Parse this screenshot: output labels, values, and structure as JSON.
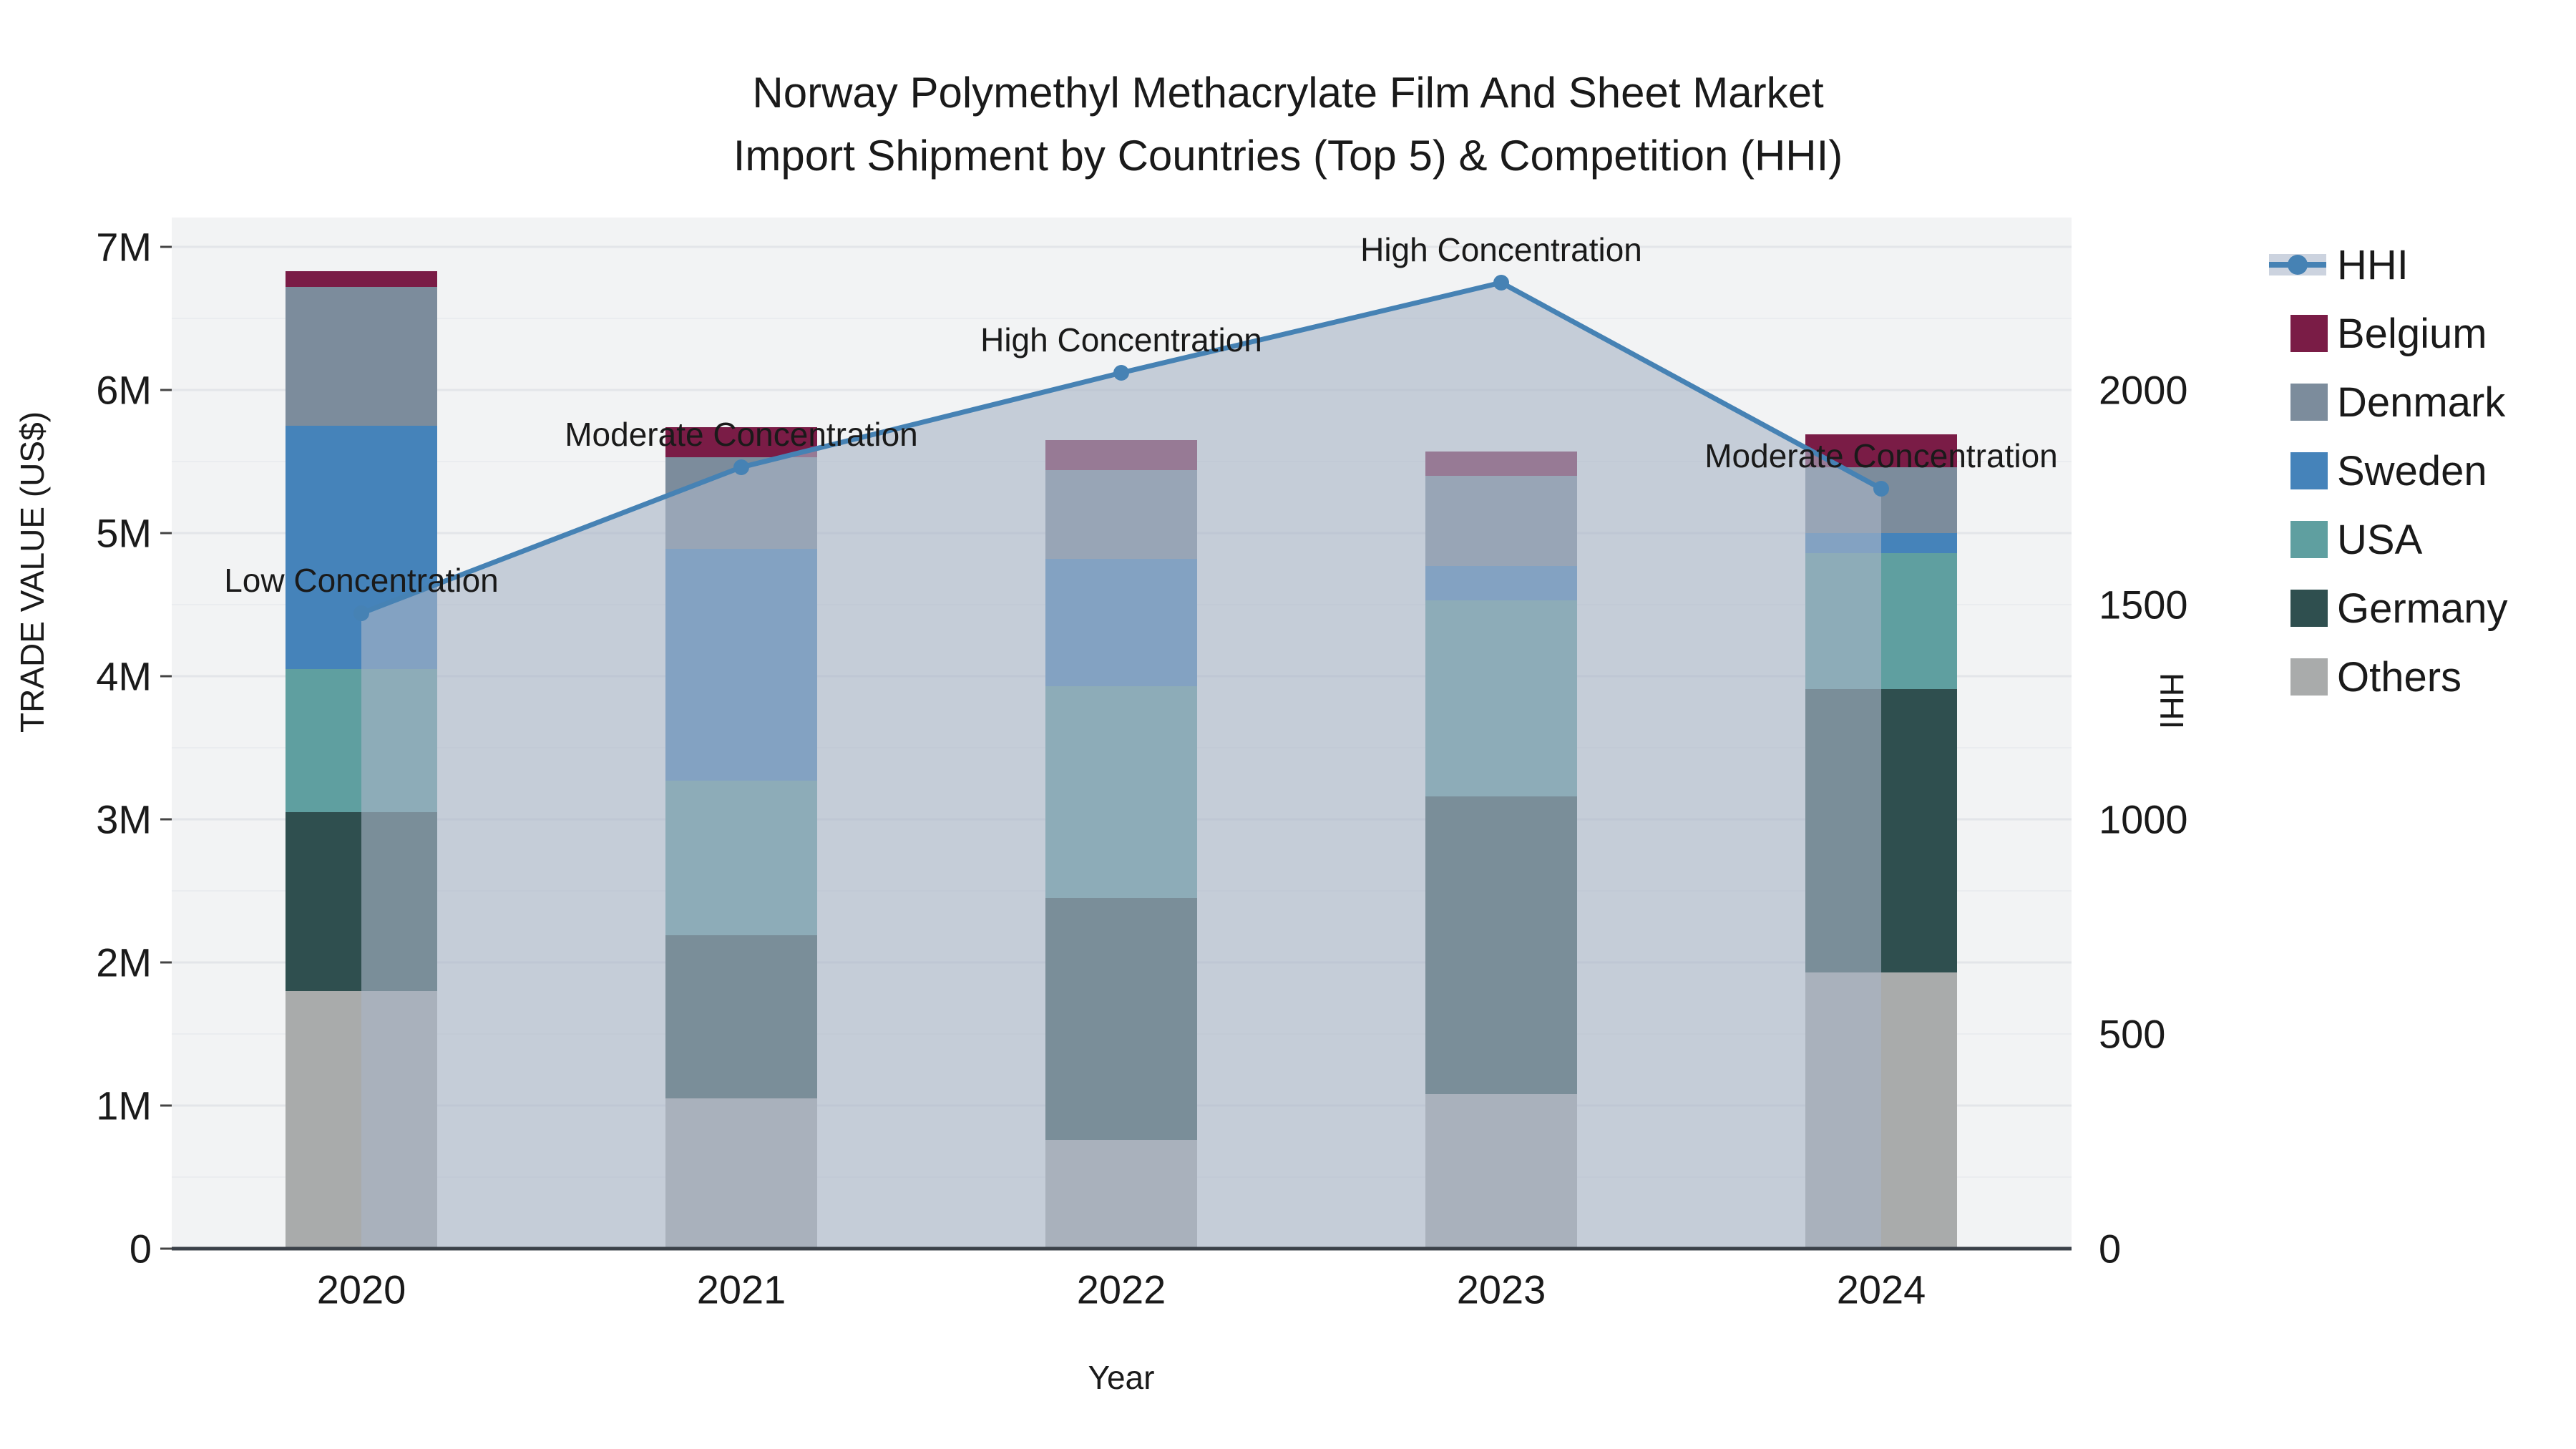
{
  "title": {
    "line1": "Norway Polymethyl Methacrylate Film And Sheet Market",
    "line2": "Import Shipment by Countries (Top 5) & Competition (HHI)"
  },
  "axes": {
    "left_title": "TRADE VALUE (US$)",
    "bottom_title": "Year",
    "right_title": "HHI"
  },
  "legend": {
    "items": [
      {
        "label": "HHI",
        "type": "line",
        "color": "#4682b4"
      },
      {
        "label": "Belgium",
        "type": "bar",
        "color": "#7a1c46"
      },
      {
        "label": "Denmark",
        "type": "bar",
        "color": "#7c8c9c"
      },
      {
        "label": "Sweden",
        "type": "bar",
        "color": "#4583ba"
      },
      {
        "label": "USA",
        "type": "bar",
        "color": "#5f9fa0"
      },
      {
        "label": "Germany",
        "type": "bar",
        "color": "#2f4f4f"
      },
      {
        "label": "Others",
        "type": "bar",
        "color": "#a9abab"
      }
    ]
  },
  "chart_data": {
    "type": "bar",
    "subtype": "stacked bars with secondary-axis line",
    "title": "Norway Polymethyl Methacrylate Film And Sheet Market Import Shipment by Countries (Top 5) & Competition (HHI)",
    "xlabel": "Year",
    "ylabel_left": "TRADE VALUE (US$)",
    "ylabel_right": "HHI",
    "unit": "million US$",
    "categories": [
      "2020",
      "2021",
      "2022",
      "2023",
      "2024"
    ],
    "series": [
      {
        "name": "Others",
        "color": "#a9abab",
        "values": [
          1.8,
          1.05,
          0.76,
          1.08,
          1.93
        ]
      },
      {
        "name": "Germany",
        "color": "#2f4f4f",
        "values": [
          1.25,
          1.14,
          1.69,
          2.08,
          1.98
        ]
      },
      {
        "name": "USA",
        "color": "#5f9fa0",
        "values": [
          1.0,
          1.08,
          1.48,
          1.37,
          0.95
        ]
      },
      {
        "name": "Sweden",
        "color": "#4583ba",
        "values": [
          1.7,
          1.62,
          0.89,
          0.24,
          0.14
        ]
      },
      {
        "name": "Denmark",
        "color": "#7c8c9c",
        "values": [
          0.97,
          0.64,
          0.62,
          0.63,
          0.46
        ]
      },
      {
        "name": "Belgium",
        "color": "#7a1c46",
        "values": [
          0.11,
          0.21,
          0.21,
          0.17,
          0.23
        ]
      }
    ],
    "bar_totals": [
      6.83,
      5.74,
      5.65,
      5.57,
      5.69
    ],
    "line": {
      "name": "HHI",
      "color": "#4682b4",
      "area_fill": "rgba(169,180,198,0.62)",
      "values": [
        1480,
        1820,
        2040,
        2250,
        1770
      ],
      "annotations": [
        "Low Concentration",
        "Moderate Concentration",
        "High Concentration",
        "High Concentration",
        "Moderate Concentration"
      ]
    },
    "y_left": {
      "tick_labels": [
        "0",
        "1M",
        "2M",
        "3M",
        "4M",
        "5M",
        "6M",
        "7M"
      ],
      "tick_values": [
        0,
        1,
        2,
        3,
        4,
        5,
        6,
        7
      ],
      "range": [
        0,
        7.2
      ]
    },
    "y_right": {
      "tick_labels": [
        "0",
        "500",
        "1000",
        "1500",
        "2000"
      ],
      "tick_values": [
        0,
        500,
        1000,
        1500,
        2000
      ],
      "range": [
        0,
        2400
      ]
    },
    "grid": {
      "major": true,
      "minor_step": 0.5,
      "plot_bg": "#f2f3f4",
      "major_color": "#e3e5e9",
      "minor_color": "#eaecef",
      "axisline_color": "#3b4149"
    },
    "legend_position": "right"
  }
}
